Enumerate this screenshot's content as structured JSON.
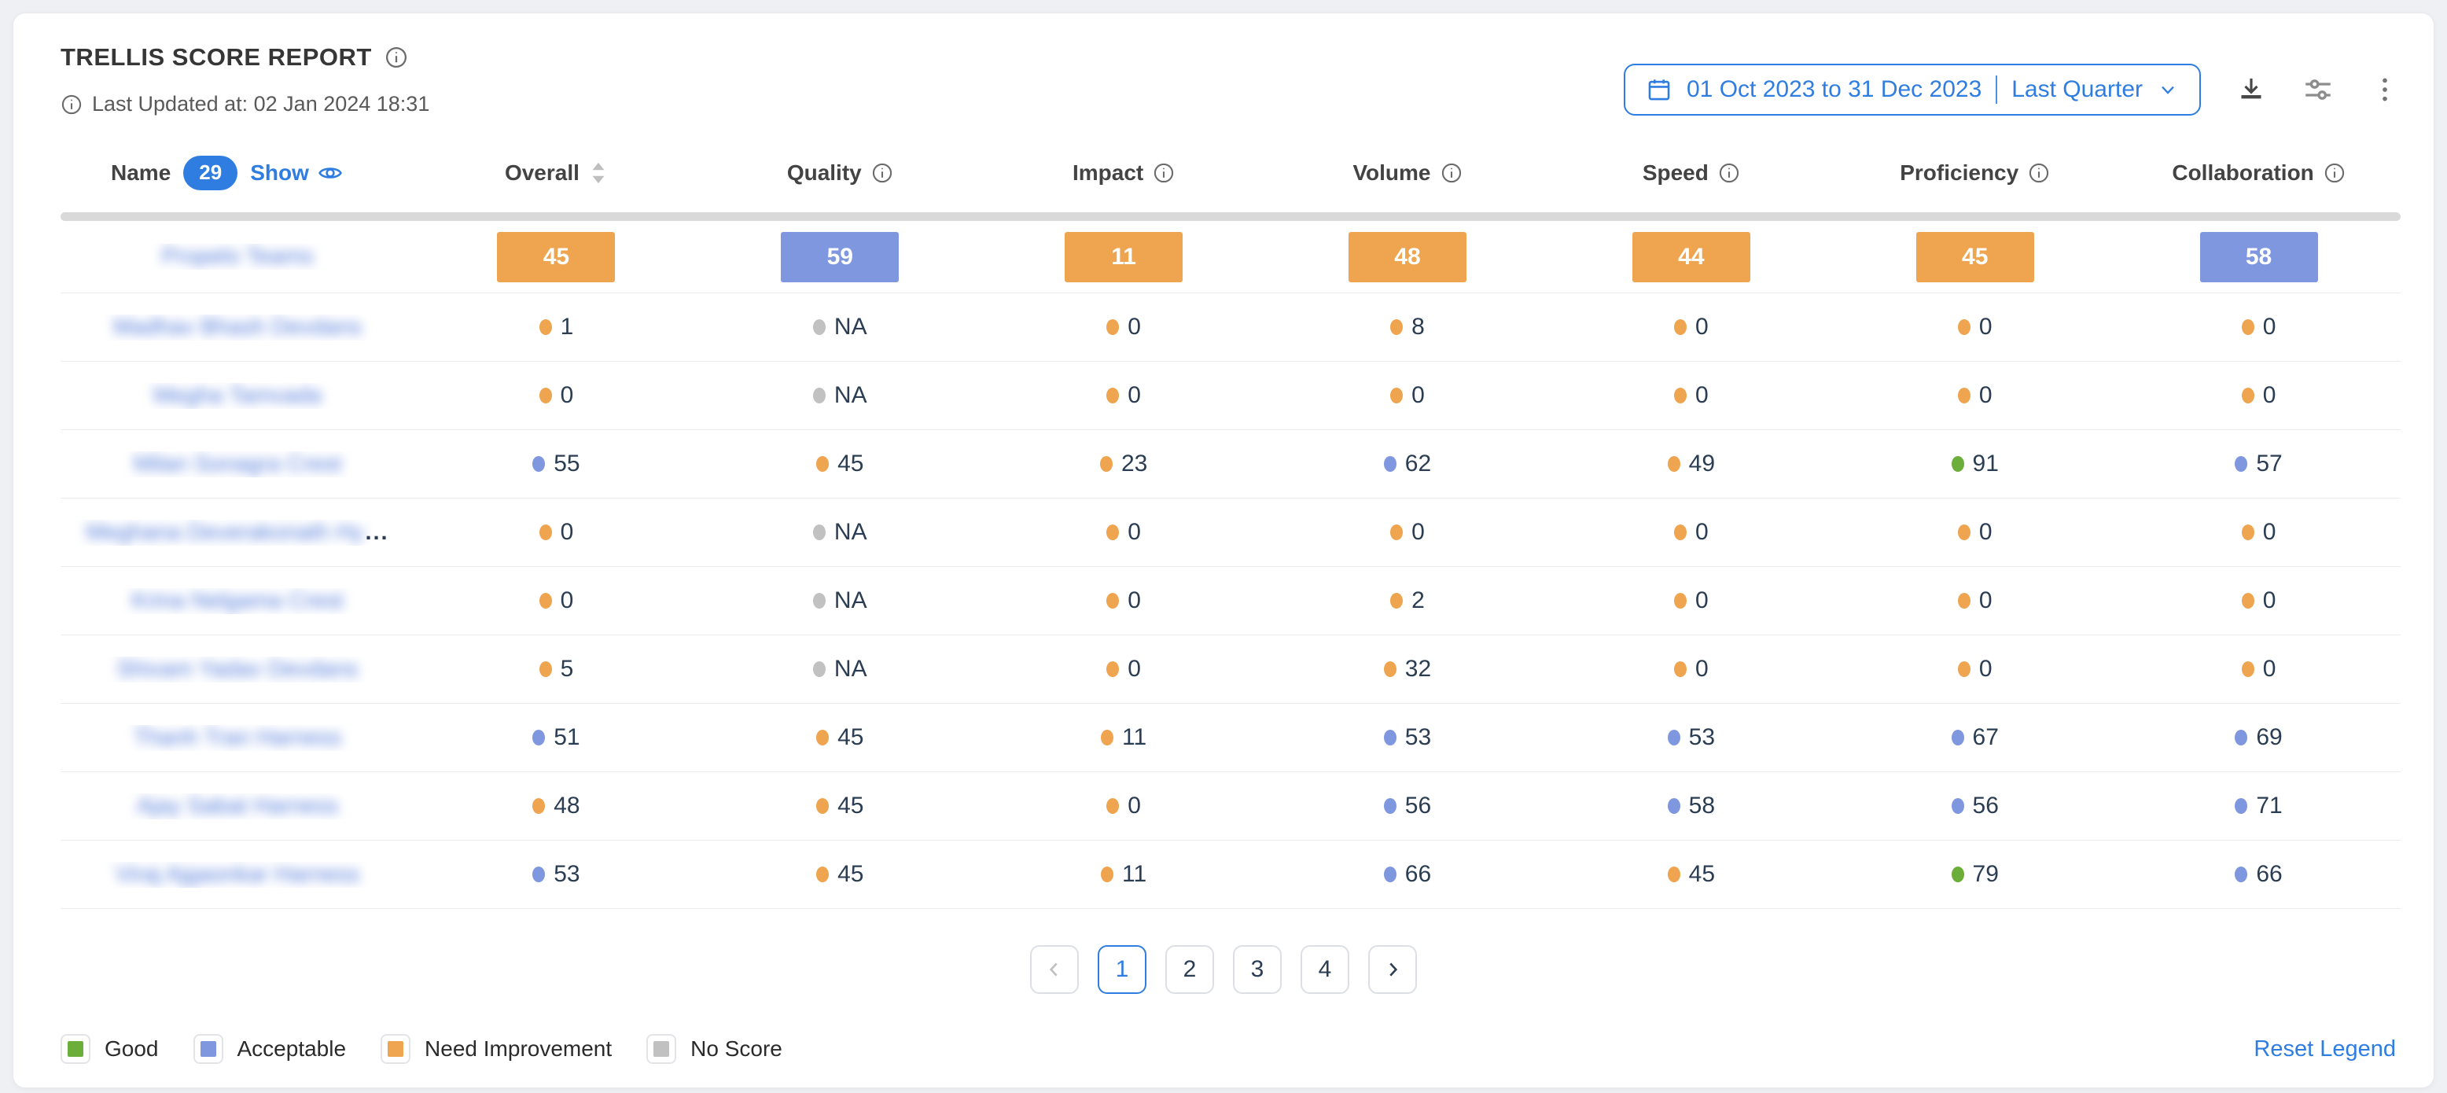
{
  "header": {
    "title": "TRELLIS SCORE REPORT",
    "last_updated": "Last Updated at: 02 Jan 2024 18:31",
    "date_range": "01 Oct 2023 to 31 Dec 2023",
    "date_preset": "Last Quarter"
  },
  "accent_color": "#2f7de1",
  "level_colors": {
    "good": "#6bae3a",
    "acceptable": "#7e97de",
    "ni": "#efa44f",
    "ns": "#c1c1c1"
  },
  "table": {
    "name_header": "Name",
    "name_count": "29",
    "show_label": "Show",
    "columns": [
      {
        "label": "Overall",
        "icon": "sort"
      },
      {
        "label": "Quality",
        "icon": "info"
      },
      {
        "label": "Impact",
        "icon": "info"
      },
      {
        "label": "Volume",
        "icon": "info"
      },
      {
        "label": "Speed",
        "icon": "info"
      },
      {
        "label": "Proficiency",
        "icon": "info"
      },
      {
        "label": "Collaboration",
        "icon": "info"
      }
    ],
    "team_row": {
      "name": "Propelo Teams",
      "name_blurred": true,
      "cells": [
        {
          "value": "45",
          "level": "ni"
        },
        {
          "value": "59",
          "level": "acceptable"
        },
        {
          "value": "11",
          "level": "ni"
        },
        {
          "value": "48",
          "level": "ni"
        },
        {
          "value": "44",
          "level": "ni"
        },
        {
          "value": "45",
          "level": "ni"
        },
        {
          "value": "58",
          "level": "acceptable"
        }
      ]
    },
    "rows": [
      {
        "name": "Madhav Bhash Devdans",
        "name_blurred": true,
        "truncated": false,
        "cells": [
          {
            "value": "1",
            "level": "ni"
          },
          {
            "value": "NA",
            "level": "ns"
          },
          {
            "value": "0",
            "level": "ni"
          },
          {
            "value": "8",
            "level": "ni"
          },
          {
            "value": "0",
            "level": "ni"
          },
          {
            "value": "0",
            "level": "ni"
          },
          {
            "value": "0",
            "level": "ni"
          }
        ]
      },
      {
        "name": "Megha Tamvada",
        "name_blurred": true,
        "truncated": false,
        "cells": [
          {
            "value": "0",
            "level": "ni"
          },
          {
            "value": "NA",
            "level": "ns"
          },
          {
            "value": "0",
            "level": "ni"
          },
          {
            "value": "0",
            "level": "ni"
          },
          {
            "value": "0",
            "level": "ni"
          },
          {
            "value": "0",
            "level": "ni"
          },
          {
            "value": "0",
            "level": "ni"
          }
        ]
      },
      {
        "name": "Milan Sonagra Crest",
        "name_blurred": true,
        "truncated": false,
        "cells": [
          {
            "value": "55",
            "level": "acceptable"
          },
          {
            "value": "45",
            "level": "ni"
          },
          {
            "value": "23",
            "level": "ni"
          },
          {
            "value": "62",
            "level": "acceptable"
          },
          {
            "value": "49",
            "level": "ni"
          },
          {
            "value": "91",
            "level": "good"
          },
          {
            "value": "57",
            "level": "acceptable"
          }
        ]
      },
      {
        "name": "Meghana Deverakonath Hy",
        "name_blurred": true,
        "truncated": true,
        "cells": [
          {
            "value": "0",
            "level": "ni"
          },
          {
            "value": "NA",
            "level": "ns"
          },
          {
            "value": "0",
            "level": "ni"
          },
          {
            "value": "0",
            "level": "ni"
          },
          {
            "value": "0",
            "level": "ni"
          },
          {
            "value": "0",
            "level": "ni"
          },
          {
            "value": "0",
            "level": "ni"
          }
        ]
      },
      {
        "name": "Krina Nelgama Crest",
        "name_blurred": true,
        "truncated": false,
        "cells": [
          {
            "value": "0",
            "level": "ni"
          },
          {
            "value": "NA",
            "level": "ns"
          },
          {
            "value": "0",
            "level": "ni"
          },
          {
            "value": "2",
            "level": "ni"
          },
          {
            "value": "0",
            "level": "ni"
          },
          {
            "value": "0",
            "level": "ni"
          },
          {
            "value": "0",
            "level": "ni"
          }
        ]
      },
      {
        "name": "Shivam Yadav Devdans",
        "name_blurred": true,
        "truncated": false,
        "cells": [
          {
            "value": "5",
            "level": "ni"
          },
          {
            "value": "NA",
            "level": "ns"
          },
          {
            "value": "0",
            "level": "ni"
          },
          {
            "value": "32",
            "level": "ni"
          },
          {
            "value": "0",
            "level": "ni"
          },
          {
            "value": "0",
            "level": "ni"
          },
          {
            "value": "0",
            "level": "ni"
          }
        ]
      },
      {
        "name": "Thanh Tran Harness",
        "name_blurred": true,
        "truncated": false,
        "cells": [
          {
            "value": "51",
            "level": "acceptable"
          },
          {
            "value": "45",
            "level": "ni"
          },
          {
            "value": "11",
            "level": "ni"
          },
          {
            "value": "53",
            "level": "acceptable"
          },
          {
            "value": "53",
            "level": "acceptable"
          },
          {
            "value": "67",
            "level": "acceptable"
          },
          {
            "value": "69",
            "level": "acceptable"
          }
        ]
      },
      {
        "name": "Ajay Sabat Harness",
        "name_blurred": true,
        "truncated": false,
        "cells": [
          {
            "value": "48",
            "level": "ni"
          },
          {
            "value": "45",
            "level": "ni"
          },
          {
            "value": "0",
            "level": "ni"
          },
          {
            "value": "56",
            "level": "acceptable"
          },
          {
            "value": "58",
            "level": "acceptable"
          },
          {
            "value": "56",
            "level": "acceptable"
          },
          {
            "value": "71",
            "level": "acceptable"
          }
        ]
      },
      {
        "name": "Viraj Ajgaonkar Harness",
        "name_blurred": true,
        "truncated": false,
        "cells": [
          {
            "value": "53",
            "level": "acceptable"
          },
          {
            "value": "45",
            "level": "ni"
          },
          {
            "value": "11",
            "level": "ni"
          },
          {
            "value": "66",
            "level": "acceptable"
          },
          {
            "value": "45",
            "level": "ni"
          },
          {
            "value": "79",
            "level": "good"
          },
          {
            "value": "66",
            "level": "acceptable"
          }
        ]
      }
    ]
  },
  "pagination": {
    "prev_enabled": false,
    "pages": [
      "1",
      "2",
      "3",
      "4"
    ],
    "active_page": "1",
    "next_enabled": true
  },
  "legend": {
    "items": [
      {
        "label": "Good",
        "level": "good",
        "color": "#6bae3a"
      },
      {
        "label": "Acceptable",
        "level": "acceptable",
        "color": "#7e97de"
      },
      {
        "label": "Need Improvement",
        "level": "ni",
        "color": "#efa44f"
      },
      {
        "label": "No Score",
        "level": "ns",
        "color": "#c1c1c1"
      }
    ],
    "reset_label": "Reset Legend"
  }
}
